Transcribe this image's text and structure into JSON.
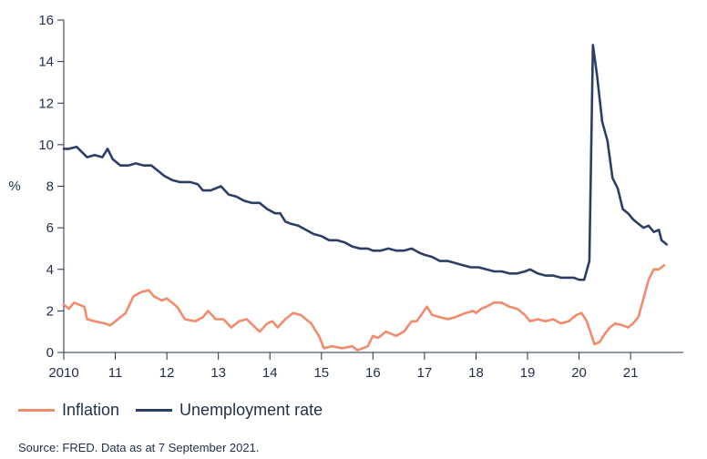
{
  "chart_data": {
    "type": "line",
    "ylabel": "%",
    "ylim": [
      0,
      16
    ],
    "yticks": [
      0,
      2,
      4,
      6,
      8,
      10,
      12,
      14,
      16
    ],
    "xlim": [
      2010,
      2022.2
    ],
    "xticks": [
      {
        "value": 2010,
        "label": "2010"
      },
      {
        "value": 2011,
        "label": "11"
      },
      {
        "value": 2012,
        "label": "12"
      },
      {
        "value": 2013,
        "label": "13"
      },
      {
        "value": 2014,
        "label": "14"
      },
      {
        "value": 2015,
        "label": "15"
      },
      {
        "value": 2016,
        "label": "16"
      },
      {
        "value": 2017,
        "label": "17"
      },
      {
        "value": 2018,
        "label": "18"
      },
      {
        "value": 2019,
        "label": "19"
      },
      {
        "value": 2020,
        "label": "20"
      },
      {
        "value": 2021,
        "label": "21"
      }
    ],
    "grid": false,
    "legend_position": "bottom-left",
    "series": [
      {
        "name": "Inflation",
        "color": "#f28b6b",
        "points": [
          [
            2010.0,
            2.3
          ],
          [
            2010.1,
            2.1
          ],
          [
            2010.2,
            2.4
          ],
          [
            2010.4,
            2.2
          ],
          [
            2010.45,
            1.6
          ],
          [
            2010.6,
            1.5
          ],
          [
            2010.8,
            1.4
          ],
          [
            2010.9,
            1.3
          ],
          [
            2011.0,
            1.5
          ],
          [
            2011.2,
            1.9
          ],
          [
            2011.35,
            2.7
          ],
          [
            2011.5,
            2.9
          ],
          [
            2011.65,
            3.0
          ],
          [
            2011.75,
            2.7
          ],
          [
            2011.9,
            2.5
          ],
          [
            2012.0,
            2.6
          ],
          [
            2012.2,
            2.2
          ],
          [
            2012.35,
            1.6
          ],
          [
            2012.55,
            1.5
          ],
          [
            2012.7,
            1.7
          ],
          [
            2012.8,
            2.0
          ],
          [
            2012.95,
            1.6
          ],
          [
            2013.1,
            1.6
          ],
          [
            2013.25,
            1.2
          ],
          [
            2013.4,
            1.5
          ],
          [
            2013.55,
            1.6
          ],
          [
            2013.8,
            1.0
          ],
          [
            2013.95,
            1.4
          ],
          [
            2014.05,
            1.5
          ],
          [
            2014.15,
            1.2
          ],
          [
            2014.3,
            1.6
          ],
          [
            2014.45,
            1.9
          ],
          [
            2014.6,
            1.8
          ],
          [
            2014.8,
            1.4
          ],
          [
            2014.95,
            0.8
          ],
          [
            2015.05,
            0.2
          ],
          [
            2015.2,
            0.3
          ],
          [
            2015.4,
            0.2
          ],
          [
            2015.6,
            0.3
          ],
          [
            2015.7,
            0.1
          ],
          [
            2015.9,
            0.3
          ],
          [
            2016.0,
            0.8
          ],
          [
            2016.1,
            0.7
          ],
          [
            2016.25,
            1.0
          ],
          [
            2016.45,
            0.8
          ],
          [
            2016.6,
            1.0
          ],
          [
            2016.75,
            1.5
          ],
          [
            2016.85,
            1.5
          ],
          [
            2017.05,
            2.2
          ],
          [
            2017.15,
            1.8
          ],
          [
            2017.3,
            1.7
          ],
          [
            2017.45,
            1.6
          ],
          [
            2017.6,
            1.7
          ],
          [
            2017.7,
            1.8
          ],
          [
            2017.8,
            1.9
          ],
          [
            2017.95,
            2.0
          ],
          [
            2018.0,
            1.9
          ],
          [
            2018.1,
            2.1
          ],
          [
            2018.2,
            2.2
          ],
          [
            2018.35,
            2.4
          ],
          [
            2018.5,
            2.4
          ],
          [
            2018.65,
            2.2
          ],
          [
            2018.8,
            2.1
          ],
          [
            2018.95,
            1.8
          ],
          [
            2019.05,
            1.5
          ],
          [
            2019.2,
            1.6
          ],
          [
            2019.35,
            1.5
          ],
          [
            2019.5,
            1.6
          ],
          [
            2019.65,
            1.4
          ],
          [
            2019.8,
            1.5
          ],
          [
            2019.95,
            1.8
          ],
          [
            2020.05,
            1.9
          ],
          [
            2020.15,
            1.5
          ],
          [
            2020.3,
            0.4
          ],
          [
            2020.4,
            0.5
          ],
          [
            2020.5,
            0.9
          ],
          [
            2020.6,
            1.2
          ],
          [
            2020.7,
            1.4
          ],
          [
            2020.85,
            1.3
          ],
          [
            2020.95,
            1.2
          ],
          [
            2021.05,
            1.4
          ],
          [
            2021.15,
            1.7
          ],
          [
            2021.25,
            2.6
          ],
          [
            2021.35,
            3.5
          ],
          [
            2021.45,
            4.0
          ],
          [
            2021.55,
            4.0
          ],
          [
            2021.65,
            4.2
          ]
        ]
      },
      {
        "name": "Unemployment rate",
        "color": "#2b3f66",
        "points": [
          [
            2010.0,
            9.8
          ],
          [
            2010.1,
            9.8
          ],
          [
            2010.25,
            9.9
          ],
          [
            2010.45,
            9.4
          ],
          [
            2010.6,
            9.5
          ],
          [
            2010.75,
            9.4
          ],
          [
            2010.85,
            9.8
          ],
          [
            2010.95,
            9.3
          ],
          [
            2011.1,
            9.0
          ],
          [
            2011.25,
            9.0
          ],
          [
            2011.4,
            9.1
          ],
          [
            2011.55,
            9.0
          ],
          [
            2011.7,
            9.0
          ],
          [
            2011.85,
            8.7
          ],
          [
            2011.95,
            8.5
          ],
          [
            2012.1,
            8.3
          ],
          [
            2012.25,
            8.2
          ],
          [
            2012.45,
            8.2
          ],
          [
            2012.6,
            8.1
          ],
          [
            2012.7,
            7.8
          ],
          [
            2012.85,
            7.8
          ],
          [
            2012.95,
            7.9
          ],
          [
            2013.05,
            8.0
          ],
          [
            2013.2,
            7.6
          ],
          [
            2013.35,
            7.5
          ],
          [
            2013.5,
            7.3
          ],
          [
            2013.65,
            7.2
          ],
          [
            2013.8,
            7.2
          ],
          [
            2013.95,
            6.9
          ],
          [
            2014.1,
            6.7
          ],
          [
            2014.2,
            6.7
          ],
          [
            2014.3,
            6.3
          ],
          [
            2014.4,
            6.2
          ],
          [
            2014.55,
            6.1
          ],
          [
            2014.7,
            5.9
          ],
          [
            2014.85,
            5.7
          ],
          [
            2015.0,
            5.6
          ],
          [
            2015.15,
            5.4
          ],
          [
            2015.3,
            5.4
          ],
          [
            2015.45,
            5.3
          ],
          [
            2015.6,
            5.1
          ],
          [
            2015.75,
            5.0
          ],
          [
            2015.9,
            5.0
          ],
          [
            2016.0,
            4.9
          ],
          [
            2016.15,
            4.9
          ],
          [
            2016.3,
            5.0
          ],
          [
            2016.45,
            4.9
          ],
          [
            2016.6,
            4.9
          ],
          [
            2016.75,
            5.0
          ],
          [
            2016.9,
            4.8
          ],
          [
            2017.0,
            4.7
          ],
          [
            2017.15,
            4.6
          ],
          [
            2017.3,
            4.4
          ],
          [
            2017.45,
            4.4
          ],
          [
            2017.6,
            4.3
          ],
          [
            2017.75,
            4.2
          ],
          [
            2017.9,
            4.1
          ],
          [
            2018.05,
            4.1
          ],
          [
            2018.2,
            4.0
          ],
          [
            2018.35,
            3.9
          ],
          [
            2018.5,
            3.9
          ],
          [
            2018.65,
            3.8
          ],
          [
            2018.8,
            3.8
          ],
          [
            2018.95,
            3.9
          ],
          [
            2019.05,
            4.0
          ],
          [
            2019.2,
            3.8
          ],
          [
            2019.35,
            3.7
          ],
          [
            2019.5,
            3.7
          ],
          [
            2019.65,
            3.6
          ],
          [
            2019.8,
            3.6
          ],
          [
            2019.9,
            3.6
          ],
          [
            2020.0,
            3.5
          ],
          [
            2020.1,
            3.5
          ],
          [
            2020.2,
            4.4
          ],
          [
            2020.27,
            14.8
          ],
          [
            2020.35,
            13.3
          ],
          [
            2020.45,
            11.1
          ],
          [
            2020.55,
            10.2
          ],
          [
            2020.65,
            8.4
          ],
          [
            2020.75,
            7.9
          ],
          [
            2020.85,
            6.9
          ],
          [
            2020.95,
            6.7
          ],
          [
            2021.05,
            6.4
          ],
          [
            2021.15,
            6.2
          ],
          [
            2021.25,
            6.0
          ],
          [
            2021.35,
            6.1
          ],
          [
            2021.45,
            5.8
          ],
          [
            2021.55,
            5.9
          ],
          [
            2021.6,
            5.4
          ],
          [
            2021.7,
            5.2
          ]
        ]
      }
    ],
    "source": "Source: FRED. Data as at 7 September 2021."
  }
}
